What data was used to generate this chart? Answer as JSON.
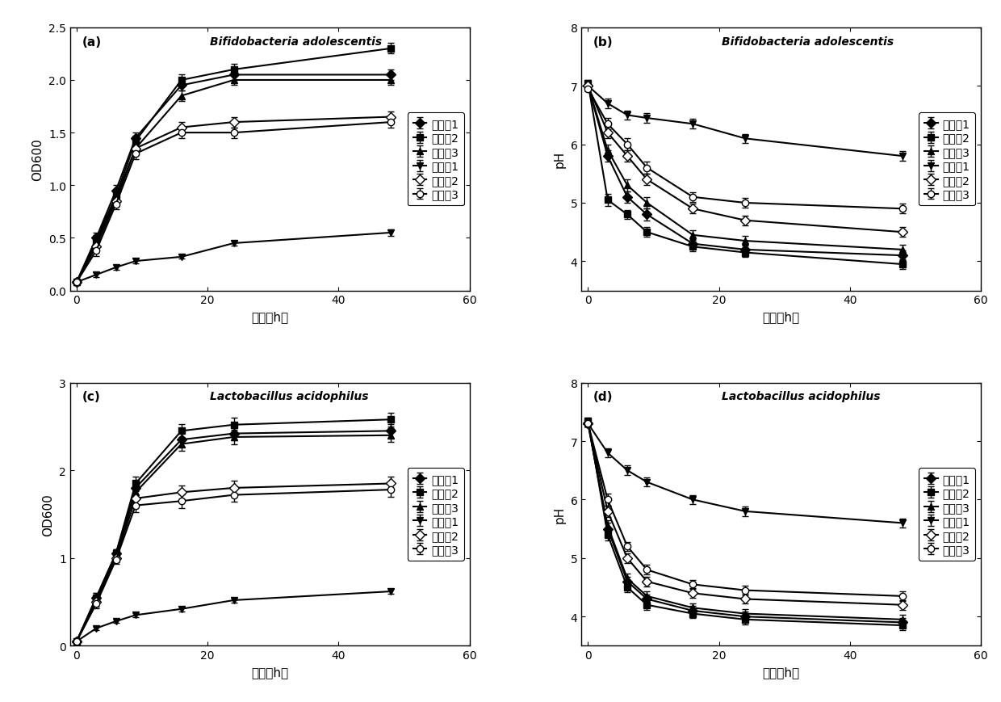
{
  "panel_a": {
    "title": "Bifidobacteria adolescentis",
    "panel_label": "(a)",
    "xlabel": "时间（h）",
    "ylabel": "OD600",
    "xlim": [
      -1,
      60
    ],
    "ylim": [
      0.0,
      2.5
    ],
    "yticks": [
      0.0,
      0.5,
      1.0,
      1.5,
      2.0,
      2.5
    ],
    "xticks": [
      0,
      20,
      40,
      60
    ],
    "series": [
      {
        "label": "实施例1",
        "x": [
          0,
          3,
          6,
          9,
          16,
          24,
          48
        ],
        "y": [
          0.08,
          0.5,
          0.95,
          1.45,
          1.95,
          2.05,
          2.05
        ],
        "yerr": [
          0.02,
          0.05,
          0.05,
          0.05,
          0.05,
          0.05,
          0.05
        ],
        "marker": "D",
        "mfc": "black"
      },
      {
        "label": "实施例2",
        "x": [
          0,
          3,
          6,
          9,
          16,
          24,
          48
        ],
        "y": [
          0.08,
          0.48,
          0.9,
          1.42,
          2.0,
          2.1,
          2.3
        ],
        "yerr": [
          0.02,
          0.05,
          0.05,
          0.05,
          0.05,
          0.05,
          0.05
        ],
        "marker": "s",
        "mfc": "black"
      },
      {
        "label": "实施例3",
        "x": [
          0,
          3,
          6,
          9,
          16,
          24,
          48
        ],
        "y": [
          0.08,
          0.45,
          0.88,
          1.35,
          1.85,
          2.0,
          2.0
        ],
        "yerr": [
          0.02,
          0.05,
          0.05,
          0.05,
          0.05,
          0.05,
          0.05
        ],
        "marker": "^",
        "mfc": "black"
      },
      {
        "label": "对比例1",
        "x": [
          0,
          3,
          6,
          9,
          16,
          24,
          48
        ],
        "y": [
          0.08,
          0.15,
          0.22,
          0.28,
          0.32,
          0.45,
          0.55
        ],
        "yerr": [
          0.02,
          0.02,
          0.02,
          0.02,
          0.02,
          0.02,
          0.03
        ],
        "marker": "v",
        "mfc": "black"
      },
      {
        "label": "对比例2",
        "x": [
          0,
          3,
          6,
          9,
          16,
          24,
          48
        ],
        "y": [
          0.08,
          0.42,
          0.85,
          1.35,
          1.55,
          1.6,
          1.65
        ],
        "yerr": [
          0.02,
          0.05,
          0.05,
          0.05,
          0.05,
          0.05,
          0.05
        ],
        "marker": "D",
        "mfc": "white"
      },
      {
        "label": "对比例3",
        "x": [
          0,
          3,
          6,
          9,
          16,
          24,
          48
        ],
        "y": [
          0.08,
          0.38,
          0.82,
          1.3,
          1.5,
          1.5,
          1.6
        ],
        "yerr": [
          0.02,
          0.05,
          0.05,
          0.05,
          0.05,
          0.05,
          0.05
        ],
        "marker": "o",
        "mfc": "white"
      }
    ]
  },
  "panel_b": {
    "title": "Bifidobacteria adolescentis",
    "panel_label": "(b)",
    "xlabel": "时间（h）",
    "ylabel": "pH",
    "xlim": [
      -1,
      60
    ],
    "ylim": [
      3.5,
      8.0
    ],
    "yticks": [
      4,
      5,
      6,
      7,
      8
    ],
    "xticks": [
      0,
      20,
      40,
      60
    ],
    "series": [
      {
        "label": "实施例1",
        "x": [
          0,
          3,
          6,
          9,
          16,
          24,
          48
        ],
        "y": [
          7.0,
          5.8,
          5.1,
          4.8,
          4.3,
          4.2,
          4.1
        ],
        "yerr": [
          0.05,
          0.1,
          0.1,
          0.1,
          0.08,
          0.08,
          0.08
        ],
        "marker": "D",
        "mfc": "black"
      },
      {
        "label": "实施例2",
        "x": [
          0,
          3,
          6,
          9,
          16,
          24,
          48
        ],
        "y": [
          7.05,
          5.05,
          4.8,
          4.5,
          4.25,
          4.15,
          3.95
        ],
        "yerr": [
          0.05,
          0.1,
          0.08,
          0.08,
          0.08,
          0.08,
          0.08
        ],
        "marker": "s",
        "mfc": "black"
      },
      {
        "label": "实施例3",
        "x": [
          0,
          3,
          6,
          9,
          16,
          24,
          48
        ],
        "y": [
          7.0,
          5.9,
          5.3,
          5.0,
          4.45,
          4.35,
          4.2
        ],
        "yerr": [
          0.05,
          0.1,
          0.1,
          0.1,
          0.08,
          0.08,
          0.08
        ],
        "marker": "^",
        "mfc": "black"
      },
      {
        "label": "对比例1",
        "x": [
          0,
          3,
          6,
          9,
          16,
          24,
          48
        ],
        "y": [
          7.0,
          6.7,
          6.5,
          6.45,
          6.35,
          6.1,
          5.8
        ],
        "yerr": [
          0.05,
          0.08,
          0.08,
          0.08,
          0.08,
          0.08,
          0.08
        ],
        "marker": "v",
        "mfc": "black"
      },
      {
        "label": "对比例2",
        "x": [
          0,
          3,
          6,
          9,
          16,
          24,
          48
        ],
        "y": [
          7.0,
          6.2,
          5.8,
          5.4,
          4.9,
          4.7,
          4.5
        ],
        "yerr": [
          0.05,
          0.1,
          0.1,
          0.1,
          0.08,
          0.08,
          0.08
        ],
        "marker": "D",
        "mfc": "white"
      },
      {
        "label": "对比例3",
        "x": [
          0,
          3,
          6,
          9,
          16,
          24,
          48
        ],
        "y": [
          6.95,
          6.35,
          6.0,
          5.6,
          5.1,
          5.0,
          4.9
        ],
        "yerr": [
          0.05,
          0.1,
          0.1,
          0.1,
          0.08,
          0.08,
          0.08
        ],
        "marker": "o",
        "mfc": "white"
      }
    ]
  },
  "panel_c": {
    "title": "Lactobacillus acidophilus",
    "panel_label": "(c)",
    "xlabel": "时间（h）",
    "ylabel": "OD600",
    "xlim": [
      -1,
      60
    ],
    "ylim": [
      0,
      3.0
    ],
    "yticks": [
      0,
      1,
      2,
      3
    ],
    "xticks": [
      0,
      20,
      40,
      60
    ],
    "series": [
      {
        "label": "实施例1",
        "x": [
          0,
          3,
          6,
          9,
          16,
          24,
          48
        ],
        "y": [
          0.05,
          0.55,
          1.05,
          1.8,
          2.35,
          2.42,
          2.45
        ],
        "yerr": [
          0.01,
          0.05,
          0.05,
          0.08,
          0.08,
          0.08,
          0.08
        ],
        "marker": "D",
        "mfc": "black"
      },
      {
        "label": "实施例2",
        "x": [
          0,
          3,
          6,
          9,
          16,
          24,
          48
        ],
        "y": [
          0.05,
          0.55,
          1.05,
          1.85,
          2.45,
          2.52,
          2.58
        ],
        "yerr": [
          0.01,
          0.05,
          0.05,
          0.08,
          0.08,
          0.08,
          0.08
        ],
        "marker": "s",
        "mfc": "black"
      },
      {
        "label": "实施例3",
        "x": [
          0,
          3,
          6,
          9,
          16,
          24,
          48
        ],
        "y": [
          0.05,
          0.52,
          1.02,
          1.75,
          2.3,
          2.38,
          2.4
        ],
        "yerr": [
          0.01,
          0.05,
          0.05,
          0.08,
          0.08,
          0.08,
          0.08
        ],
        "marker": "^",
        "mfc": "black"
      },
      {
        "label": "对比例1",
        "x": [
          0,
          3,
          6,
          9,
          16,
          24,
          48
        ],
        "y": [
          0.05,
          0.2,
          0.28,
          0.35,
          0.42,
          0.52,
          0.62
        ],
        "yerr": [
          0.01,
          0.02,
          0.02,
          0.02,
          0.03,
          0.03,
          0.03
        ],
        "marker": "v",
        "mfc": "black"
      },
      {
        "label": "对比例2",
        "x": [
          0,
          3,
          6,
          9,
          16,
          24,
          48
        ],
        "y": [
          0.05,
          0.5,
          1.0,
          1.68,
          1.75,
          1.8,
          1.85
        ],
        "yerr": [
          0.01,
          0.05,
          0.05,
          0.08,
          0.08,
          0.08,
          0.08
        ],
        "marker": "D",
        "mfc": "white"
      },
      {
        "label": "对比例3",
        "x": [
          0,
          3,
          6,
          9,
          16,
          24,
          48
        ],
        "y": [
          0.05,
          0.48,
          0.98,
          1.6,
          1.65,
          1.72,
          1.78
        ],
        "yerr": [
          0.01,
          0.05,
          0.05,
          0.08,
          0.08,
          0.08,
          0.08
        ],
        "marker": "o",
        "mfc": "white"
      }
    ]
  },
  "panel_d": {
    "title": "Lactobacillus acidophilus",
    "panel_label": "(d)",
    "xlabel": "时间（h）",
    "ylabel": "pH",
    "xlim": [
      -1,
      60
    ],
    "ylim": [
      3.5,
      8.0
    ],
    "yticks": [
      4,
      5,
      6,
      7,
      8
    ],
    "xticks": [
      0,
      20,
      40,
      60
    ],
    "series": [
      {
        "label": "实施例1",
        "x": [
          0,
          3,
          6,
          9,
          16,
          24,
          48
        ],
        "y": [
          7.3,
          5.5,
          4.6,
          4.3,
          4.1,
          4.0,
          3.9
        ],
        "yerr": [
          0.05,
          0.1,
          0.08,
          0.08,
          0.08,
          0.08,
          0.08
        ],
        "marker": "D",
        "mfc": "black"
      },
      {
        "label": "实施例2",
        "x": [
          0,
          3,
          6,
          9,
          16,
          24,
          48
        ],
        "y": [
          7.35,
          5.4,
          4.5,
          4.2,
          4.05,
          3.95,
          3.85
        ],
        "yerr": [
          0.05,
          0.1,
          0.08,
          0.08,
          0.08,
          0.08,
          0.08
        ],
        "marker": "s",
        "mfc": "black"
      },
      {
        "label": "实施例3",
        "x": [
          0,
          3,
          6,
          9,
          16,
          24,
          48
        ],
        "y": [
          7.3,
          5.55,
          4.65,
          4.35,
          4.15,
          4.05,
          3.95
        ],
        "yerr": [
          0.05,
          0.1,
          0.08,
          0.08,
          0.08,
          0.08,
          0.08
        ],
        "marker": "^",
        "mfc": "black"
      },
      {
        "label": "对比例1",
        "x": [
          0,
          3,
          6,
          9,
          16,
          24,
          48
        ],
        "y": [
          7.3,
          6.8,
          6.5,
          6.3,
          6.0,
          5.8,
          5.6
        ],
        "yerr": [
          0.05,
          0.08,
          0.08,
          0.08,
          0.08,
          0.08,
          0.08
        ],
        "marker": "v",
        "mfc": "black"
      },
      {
        "label": "对比例2",
        "x": [
          0,
          3,
          6,
          9,
          16,
          24,
          48
        ],
        "y": [
          7.3,
          5.8,
          5.0,
          4.6,
          4.4,
          4.3,
          4.2
        ],
        "yerr": [
          0.05,
          0.1,
          0.08,
          0.08,
          0.08,
          0.08,
          0.08
        ],
        "marker": "D",
        "mfc": "white"
      },
      {
        "label": "对比例3",
        "x": [
          0,
          3,
          6,
          9,
          16,
          24,
          48
        ],
        "y": [
          7.3,
          6.0,
          5.2,
          4.8,
          4.55,
          4.45,
          4.35
        ],
        "yerr": [
          0.05,
          0.1,
          0.08,
          0.08,
          0.08,
          0.08,
          0.08
        ],
        "marker": "o",
        "mfc": "white"
      }
    ]
  },
  "background_color": "#ffffff",
  "line_color": "#000000",
  "linewidth": 1.5,
  "markersize": 6,
  "capsize": 3,
  "elinewidth": 1.0
}
